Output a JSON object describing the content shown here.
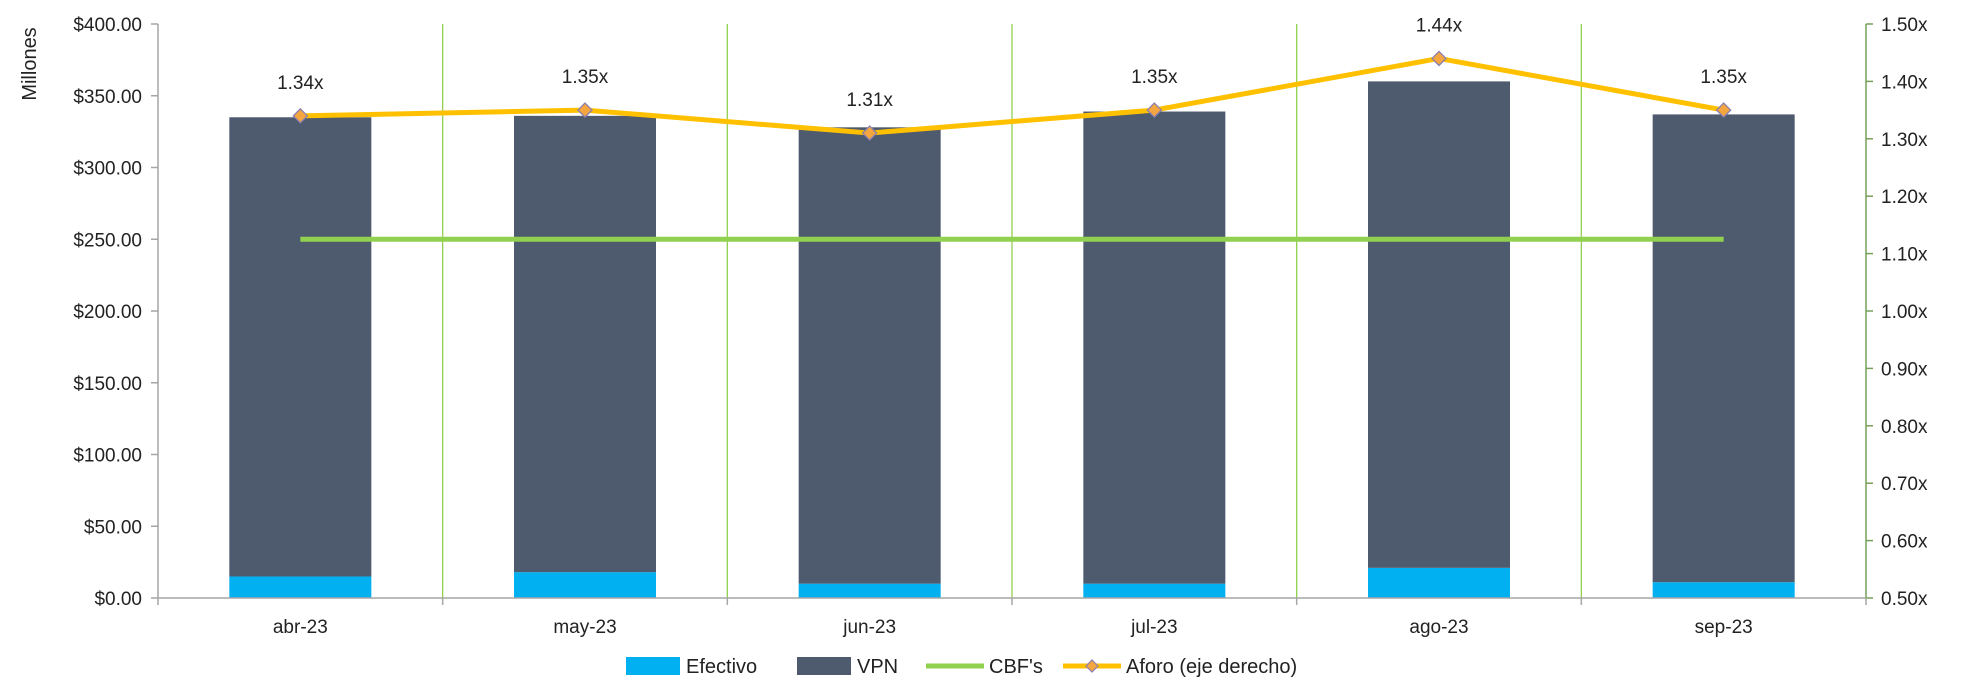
{
  "chart_data": {
    "type": "bar",
    "title": "",
    "categories": [
      "abr-23",
      "may-23",
      "jun-23",
      "jul-23",
      "ago-23",
      "sep-23"
    ],
    "ylabel": "Millones",
    "ylim": [
      0,
      400
    ],
    "y_ticks": [
      "$0.00",
      "$50.00",
      "$100.00",
      "$150.00",
      "$200.00",
      "$250.00",
      "$300.00",
      "$350.00",
      "$400.00"
    ],
    "y2lim": [
      0.5,
      1.5
    ],
    "y2_ticks": [
      "0.50x",
      "0.60x",
      "0.70x",
      "0.80x",
      "0.90x",
      "1.00x",
      "1.10x",
      "1.20x",
      "1.30x",
      "1.40x",
      "1.50x"
    ],
    "stacked": true,
    "series": [
      {
        "name": "Efectivo",
        "kind": "bar",
        "axis": "left",
        "color": "#00B0F0",
        "values": [
          15,
          18,
          10,
          10,
          21,
          11
        ]
      },
      {
        "name": "VPN",
        "kind": "bar",
        "axis": "left",
        "color": "#4E5A6E",
        "values": [
          320,
          318,
          318,
          329,
          339,
          326
        ]
      },
      {
        "name": "CBF's",
        "kind": "line",
        "axis": "left",
        "color": "#92D050",
        "values": [
          250,
          250,
          250,
          250,
          250,
          250
        ]
      },
      {
        "name": "Aforo (eje derecho)",
        "kind": "line",
        "axis": "right",
        "color": "#FFC000",
        "marker_color": "#F4A640",
        "values": [
          1.34,
          1.35,
          1.31,
          1.35,
          1.44,
          1.35
        ],
        "labels": [
          "1.34x",
          "1.35x",
          "1.31x",
          "1.35x",
          "1.44x",
          "1.35x"
        ]
      }
    ],
    "grid": {
      "vertical_separators": true,
      "horizontal": false,
      "color": "#92D050"
    },
    "legend": {
      "position": "bottom-center"
    }
  }
}
